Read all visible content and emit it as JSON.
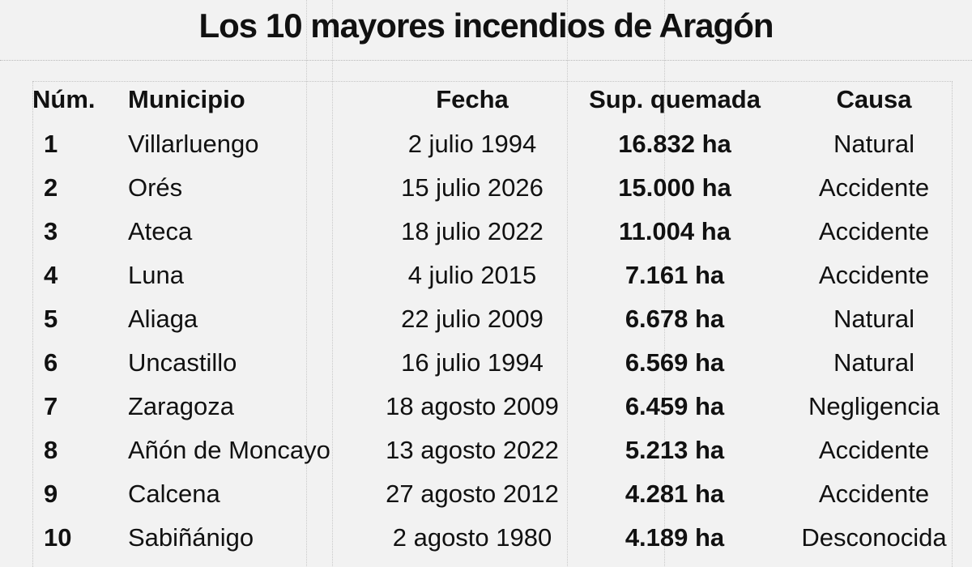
{
  "title": "Los 10 mayores incendios de Aragón",
  "columns": {
    "num": "Núm.",
    "municipio": "Municipio",
    "fecha": "Fecha",
    "superficie": "Sup. quemada",
    "causa": "Causa"
  },
  "rows": [
    {
      "num": "1",
      "municipio": "Villarluengo",
      "fecha": "2 julio 1994",
      "superficie": "16.832 ha",
      "causa": "Natural"
    },
    {
      "num": "2",
      "municipio": "Orés",
      "fecha": "15 julio 2026",
      "superficie": "15.000 ha",
      "causa": "Accidente"
    },
    {
      "num": "3",
      "municipio": "Ateca",
      "fecha": "18 julio 2022",
      "superficie": "11.004 ha",
      "causa": "Accidente"
    },
    {
      "num": "4",
      "municipio": "Luna",
      "fecha": "4 julio 2015",
      "superficie": "7.161 ha",
      "causa": "Accidente"
    },
    {
      "num": "5",
      "municipio": "Aliaga",
      "fecha": "22 julio 2009",
      "superficie": "6.678 ha",
      "causa": "Natural"
    },
    {
      "num": "6",
      "municipio": "Uncastillo",
      "fecha": "16 julio 1994",
      "superficie": "6.569 ha",
      "causa": "Natural"
    },
    {
      "num": "7",
      "municipio": "Zaragoza",
      "fecha": "18 agosto 2009",
      "superficie": "6.459 ha",
      "causa": "Negligencia"
    },
    {
      "num": "8",
      "municipio": "Añón de Moncayo",
      "fecha": "13 agosto 2022",
      "superficie": "5.213 ha",
      "causa": "Accidente"
    },
    {
      "num": "9",
      "municipio": "Calcena",
      "fecha": "27 agosto 2012",
      "superficie": "4.281 ha",
      "causa": "Accidente"
    },
    {
      "num": "10",
      "municipio": "Sabiñánigo",
      "fecha": "2 agosto 1980",
      "superficie": "4.189 ha",
      "causa": "Desconocida"
    }
  ]
}
